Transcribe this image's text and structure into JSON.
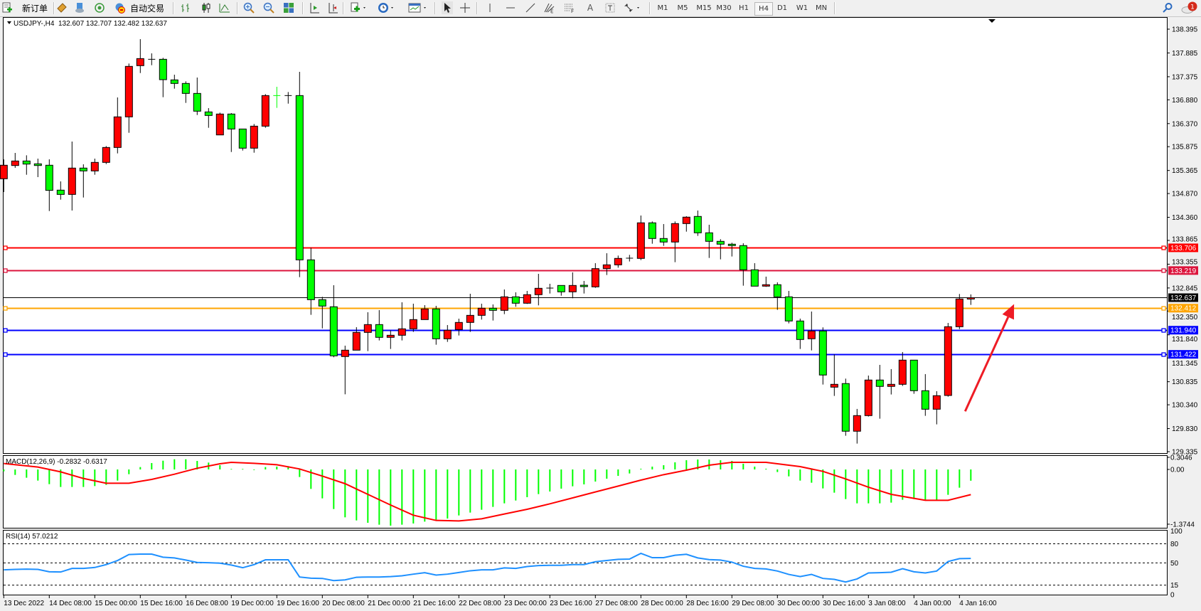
{
  "toolbar": {
    "new_order_label": "新订单",
    "auto_trading_label": "自动交易",
    "icons": [
      "new-order-icon",
      "market-watch-icon",
      "navigator-icon",
      "signals-icon",
      "auto-trading-icon",
      "bar-chart-icon",
      "candlestick-icon",
      "line-chart-icon",
      "zoom-in-icon",
      "zoom-out-icon",
      "tile-windows-icon",
      "autoscroll-icon",
      "chart-shift-icon",
      "new-chart-icon",
      "periods-icon",
      "indicators-icon",
      "cursor-icon",
      "crosshair-icon",
      "vertical-line-icon",
      "horizontal-line-icon",
      "trendline-icon",
      "fibo-fan-icon",
      "fibo-retracement-icon",
      "text-icon",
      "text-label-icon",
      "arrows-icon"
    ],
    "text_tool_label": "A",
    "timeframes": [
      "M1",
      "M5",
      "M15",
      "M30",
      "H1",
      "H4",
      "D1",
      "W1",
      "MN"
    ],
    "active_timeframe": "H4",
    "notification_count": "1"
  },
  "chart": {
    "symbol_label": "USDJPY-,H4",
    "ohlc_label": "132.607 132.707 132.482 132.637",
    "macd_label": "MACD(12,26,9) -0.2832 -0.6317",
    "rsi_label": "RSI(14) 57.0212"
  },
  "chart_data": {
    "type": "candlestick",
    "symbol": "USDJPY-",
    "timeframe": "H4",
    "colors": {
      "bull": "#ff0000",
      "bear": "#00ff00",
      "doji": "#000000",
      "macd_hist": "#00ff00",
      "macd_signal": "#ff0000",
      "rsi": "#1e90ff"
    },
    "price_ticks": [
      "138.395",
      "137.885",
      "137.375",
      "136.880",
      "136.370",
      "135.875",
      "135.365",
      "134.870",
      "134.360",
      "133.865",
      "133.355",
      "132.845",
      "132.350",
      "131.840",
      "131.345",
      "130.835",
      "130.340",
      "129.830",
      "129.335"
    ],
    "ylim": [
      129.335,
      138.395
    ],
    "x_labels": [
      "13 Dec 2022",
      "14 Dec 08:00",
      "15 Dec 00:00",
      "15 Dec 16:00",
      "16 Dec 08:00",
      "19 Dec 00:00",
      "19 Dec 16:00",
      "20 Dec 08:00",
      "21 Dec 00:00",
      "21 Dec 16:00",
      "22 Dec 08:00",
      "23 Dec 00:00",
      "23 Dec 16:00",
      "27 Dec 08:00",
      "28 Dec 00:00",
      "28 Dec 16:00",
      "29 Dec 08:00",
      "30 Dec 00:00",
      "30 Dec 16:00",
      "3 Jan 08:00",
      "4 Jan 00:00",
      "4 Jan 16:00"
    ],
    "x_label_every": 4,
    "ohlc": [
      [
        135.187,
        135.604,
        134.902,
        135.477
      ],
      [
        135.471,
        135.741,
        135.421,
        135.568
      ],
      [
        135.568,
        135.69,
        135.273,
        135.502
      ],
      [
        135.507,
        135.619,
        135.222,
        135.471
      ],
      [
        135.477,
        135.604,
        134.495,
        134.938
      ],
      [
        134.943,
        135.131,
        134.739,
        134.851
      ],
      [
        134.851,
        135.985,
        134.506,
        135.416
      ],
      [
        135.416,
        135.497,
        134.785,
        135.355
      ],
      [
        135.355,
        135.619,
        135.273,
        135.538
      ],
      [
        135.538,
        135.888,
        135.502,
        135.858
      ],
      [
        135.858,
        136.931,
        135.731,
        136.514
      ],
      [
        136.514,
        137.658,
        136.173,
        137.597
      ],
      [
        137.612,
        138.181,
        137.454,
        137.764
      ],
      [
        137.749,
        137.876,
        137.622,
        137.749
      ],
      [
        137.749,
        137.78,
        136.936,
        137.312
      ],
      [
        137.307,
        137.419,
        137.119,
        137.231
      ],
      [
        137.231,
        137.276,
        136.814,
        137.017
      ],
      [
        137.017,
        137.358,
        136.554,
        136.636
      ],
      [
        136.62,
        136.702,
        136.28,
        136.544
      ],
      [
        136.127,
        136.605,
        136.127,
        136.575
      ],
      [
        136.575,
        136.595,
        135.761,
        136.254
      ],
      [
        136.254,
        136.254,
        135.792,
        135.843
      ],
      [
        135.843,
        136.361,
        135.746,
        136.315
      ],
      [
        136.315,
        137.002,
        136.28,
        136.971
      ],
      [
        136.971,
        137.159,
        136.707,
        136.969
      ],
      [
        136.971,
        137.047,
        136.798,
        136.971
      ],
      [
        136.971,
        137.48,
        133.077,
        133.448
      ],
      [
        133.448,
        133.707,
        132.269,
        132.594
      ],
      [
        132.594,
        132.655,
        131.979,
        132.457
      ],
      [
        132.442,
        132.904,
        131.359,
        131.389
      ],
      [
        131.374,
        131.608,
        130.565,
        131.511
      ],
      [
        131.511,
        132.004,
        131.511,
        131.892
      ],
      [
        131.892,
        132.325,
        131.491,
        132.06
      ],
      [
        132.06,
        132.37,
        131.72,
        131.786
      ],
      [
        131.786,
        131.933,
        131.537,
        131.831
      ],
      [
        131.831,
        132.538,
        131.72,
        131.969
      ],
      [
        131.969,
        132.508,
        131.903,
        132.167
      ],
      [
        132.167,
        132.477,
        132.167,
        132.396
      ],
      [
        132.396,
        132.462,
        131.628,
        131.755
      ],
      [
        131.755,
        132.05,
        131.689,
        131.938
      ],
      [
        131.953,
        132.187,
        131.826,
        132.106
      ],
      [
        132.106,
        132.721,
        131.903,
        132.258
      ],
      [
        132.258,
        132.508,
        132.167,
        132.411
      ],
      [
        132.411,
        132.492,
        132.147,
        132.365
      ],
      [
        132.365,
        132.813,
        132.284,
        132.655
      ],
      [
        132.655,
        132.752,
        132.442,
        132.518
      ],
      [
        132.518,
        132.782,
        132.503,
        132.701
      ],
      [
        132.701,
        133.148,
        132.472,
        132.838
      ],
      [
        132.843,
        132.935,
        132.726,
        132.843
      ],
      [
        132.899,
        132.904,
        132.68,
        132.762
      ],
      [
        132.762,
        133.179,
        132.624,
        132.899
      ],
      [
        132.904,
        132.996,
        132.726,
        132.874
      ],
      [
        132.869,
        133.377,
        132.848,
        133.26
      ],
      [
        133.26,
        133.59,
        133.123,
        133.341
      ],
      [
        133.341,
        133.54,
        133.28,
        133.479
      ],
      [
        133.484,
        133.555,
        133.413,
        133.484
      ],
      [
        133.479,
        134.399,
        133.443,
        134.242
      ],
      [
        134.242,
        134.272,
        133.794,
        133.906
      ],
      [
        133.906,
        134.216,
        133.748,
        133.83
      ],
      [
        133.83,
        134.272,
        133.398,
        134.226
      ],
      [
        134.226,
        134.384,
        134.053,
        134.364
      ],
      [
        134.379,
        134.506,
        133.962,
        134.028
      ],
      [
        134.028,
        134.201,
        133.489,
        133.845
      ],
      [
        133.845,
        133.891,
        133.459,
        133.784
      ],
      [
        133.784,
        133.815,
        133.52,
        133.754
      ],
      [
        133.754,
        133.804,
        132.894,
        133.235
      ],
      [
        133.235,
        133.377,
        132.884,
        132.884
      ],
      [
        132.884,
        133.088,
        132.869,
        132.915
      ],
      [
        132.915,
        132.966,
        132.376,
        132.655
      ],
      [
        132.655,
        132.782,
        132.086,
        132.137
      ],
      [
        132.137,
        132.188,
        131.537,
        131.74
      ],
      [
        131.756,
        132.34,
        131.506,
        131.923
      ],
      [
        131.923,
        132.0,
        130.774,
        130.978
      ],
      [
        130.718,
        131.42,
        130.53,
        130.779
      ],
      [
        130.795,
        130.901,
        129.676,
        129.773
      ],
      [
        129.773,
        130.251,
        129.508,
        130.108
      ],
      [
        130.108,
        130.967,
        130.088,
        130.871
      ],
      [
        130.871,
        131.196,
        130.042,
        130.734
      ],
      [
        130.734,
        131.105,
        130.561,
        130.779
      ],
      [
        130.779,
        131.471,
        130.744,
        131.298
      ],
      [
        131.298,
        131.298,
        130.576,
        130.642
      ],
      [
        130.642,
        130.998,
        130.103,
        130.245
      ],
      [
        130.245,
        130.632,
        129.92,
        130.535
      ],
      [
        130.54,
        132.095,
        130.514,
        132.014
      ],
      [
        132.014,
        132.716,
        131.963,
        132.609
      ],
      [
        132.607,
        132.707,
        132.482,
        132.637
      ]
    ],
    "levels": [
      {
        "price": 133.706,
        "label": "133.706",
        "color": "#ff0000"
      },
      {
        "price": 133.219,
        "label": "133.219",
        "color": "#dc143c"
      },
      {
        "price": 132.412,
        "label": "132.412",
        "color": "#ffa500"
      },
      {
        "price": 131.94,
        "label": "131.940",
        "color": "#0000ff"
      },
      {
        "price": 131.422,
        "label": "131.422",
        "color": "#0000ff"
      }
    ],
    "bid": {
      "price": 132.637,
      "label": "132.637"
    },
    "annotation_arrow": {
      "from_candle": 84.5,
      "from_price": 130.2,
      "to_candle": 88.8,
      "to_price": 132.5,
      "color": "#ee1c25"
    },
    "macd": {
      "ticks": [
        "0.3046",
        "0.00",
        "-1.3744"
      ],
      "ylim": [
        -1.3744,
        0.3046
      ],
      "hist": [
        -0.048,
        -0.137,
        -0.208,
        -0.28,
        -0.369,
        -0.44,
        -0.44,
        -0.44,
        -0.417,
        -0.387,
        -0.28,
        -0.119,
        0.06,
        0.161,
        0.22,
        0.256,
        0.256,
        0.214,
        0.173,
        0.107,
        0.012,
        0.012,
        -0.006,
        0.06,
        0.071,
        0.083,
        -0.19,
        -0.488,
        -0.726,
        -0.994,
        -1.202,
        -1.28,
        -1.339,
        -1.387,
        -1.411,
        -1.387,
        -1.357,
        -1.31,
        -1.262,
        -1.232,
        -1.155,
        -1.083,
        -1.012,
        -0.94,
        -0.851,
        -0.78,
        -0.696,
        -0.619,
        -0.554,
        -0.482,
        -0.423,
        -0.375,
        -0.304,
        -0.232,
        -0.161,
        -0.101,
        0.018,
        0.071,
        0.107,
        0.179,
        0.232,
        0.25,
        0.25,
        0.232,
        0.214,
        0.143,
        0.071,
        0.018,
        -0.065,
        -0.173,
        -0.28,
        -0.333,
        -0.476,
        -0.583,
        -0.744,
        -0.851,
        -0.851,
        -0.851,
        -0.833,
        -0.762,
        -0.744,
        -0.762,
        -0.762,
        -0.637,
        -0.458,
        -0.283
      ],
      "signal_points": [
        [
          0,
          0.149
        ],
        [
          3,
          0.06
        ],
        [
          5,
          -0.06
        ],
        [
          7,
          -0.226
        ],
        [
          9,
          -0.345
        ],
        [
          11,
          -0.345
        ],
        [
          13,
          -0.25
        ],
        [
          15,
          -0.119
        ],
        [
          17,
          0.03
        ],
        [
          19,
          0.143
        ],
        [
          20,
          0.179
        ],
        [
          22,
          0.155
        ],
        [
          24,
          0.119
        ],
        [
          26,
          0.012
        ],
        [
          28,
          -0.167
        ],
        [
          30,
          -0.357
        ],
        [
          32,
          -0.625
        ],
        [
          34,
          -0.893
        ],
        [
          36,
          -1.149
        ],
        [
          38,
          -1.28
        ],
        [
          40,
          -1.292
        ],
        [
          42,
          -1.238
        ],
        [
          44,
          -1.119
        ],
        [
          46,
          -1.0
        ],
        [
          48,
          -0.863
        ],
        [
          50,
          -0.714
        ],
        [
          52,
          -0.565
        ],
        [
          54,
          -0.417
        ],
        [
          56,
          -0.268
        ],
        [
          58,
          -0.131
        ],
        [
          60,
          -0.018
        ],
        [
          62,
          0.107
        ],
        [
          64,
          0.179
        ],
        [
          67,
          0.179
        ],
        [
          68,
          0.143
        ],
        [
          70,
          0.071
        ],
        [
          72,
          -0.048
        ],
        [
          74,
          -0.238
        ],
        [
          76,
          -0.446
        ],
        [
          78,
          -0.625
        ],
        [
          80,
          -0.726
        ],
        [
          81,
          -0.774
        ],
        [
          83,
          -0.774
        ],
        [
          85,
          -0.632
        ]
      ]
    },
    "rsi": {
      "ticks": [
        "100",
        "80",
        "50",
        "15",
        "0"
      ],
      "levels": [
        80,
        50,
        15
      ],
      "ylim": [
        0,
        100
      ],
      "values": [
        39.1,
        39.8,
        40.2,
        39.8,
        36.0,
        35.7,
        41.3,
        41.3,
        42.8,
        47.3,
        53.7,
        63.1,
        63.8,
        63.8,
        58.9,
        57.8,
        54.4,
        50.7,
        50.3,
        49.6,
        46.6,
        42.4,
        47.3,
        54.8,
        54.8,
        54.8,
        27.8,
        25.9,
        25.6,
        22.2,
        23.3,
        27.4,
        27.8,
        27.8,
        28.5,
        29.7,
        32.3,
        34.6,
        30.8,
        32.3,
        34.9,
        37.6,
        39.1,
        39.1,
        42.1,
        41.3,
        44.3,
        45.8,
        46.2,
        46.2,
        47.3,
        47.3,
        51.8,
        53.7,
        55.6,
        56.0,
        65.0,
        58.2,
        58.2,
        62.0,
        63.5,
        57.8,
        55.2,
        54.4,
        51.1,
        44.7,
        41.3,
        40.5,
        37.2,
        31.9,
        28.5,
        31.9,
        25.6,
        24.1,
        20.0,
        24.8,
        34.2,
        34.6,
        35.3,
        40.9,
        36.0,
        34.2,
        37.2,
        52.2,
        56.7,
        57.0
      ]
    }
  }
}
